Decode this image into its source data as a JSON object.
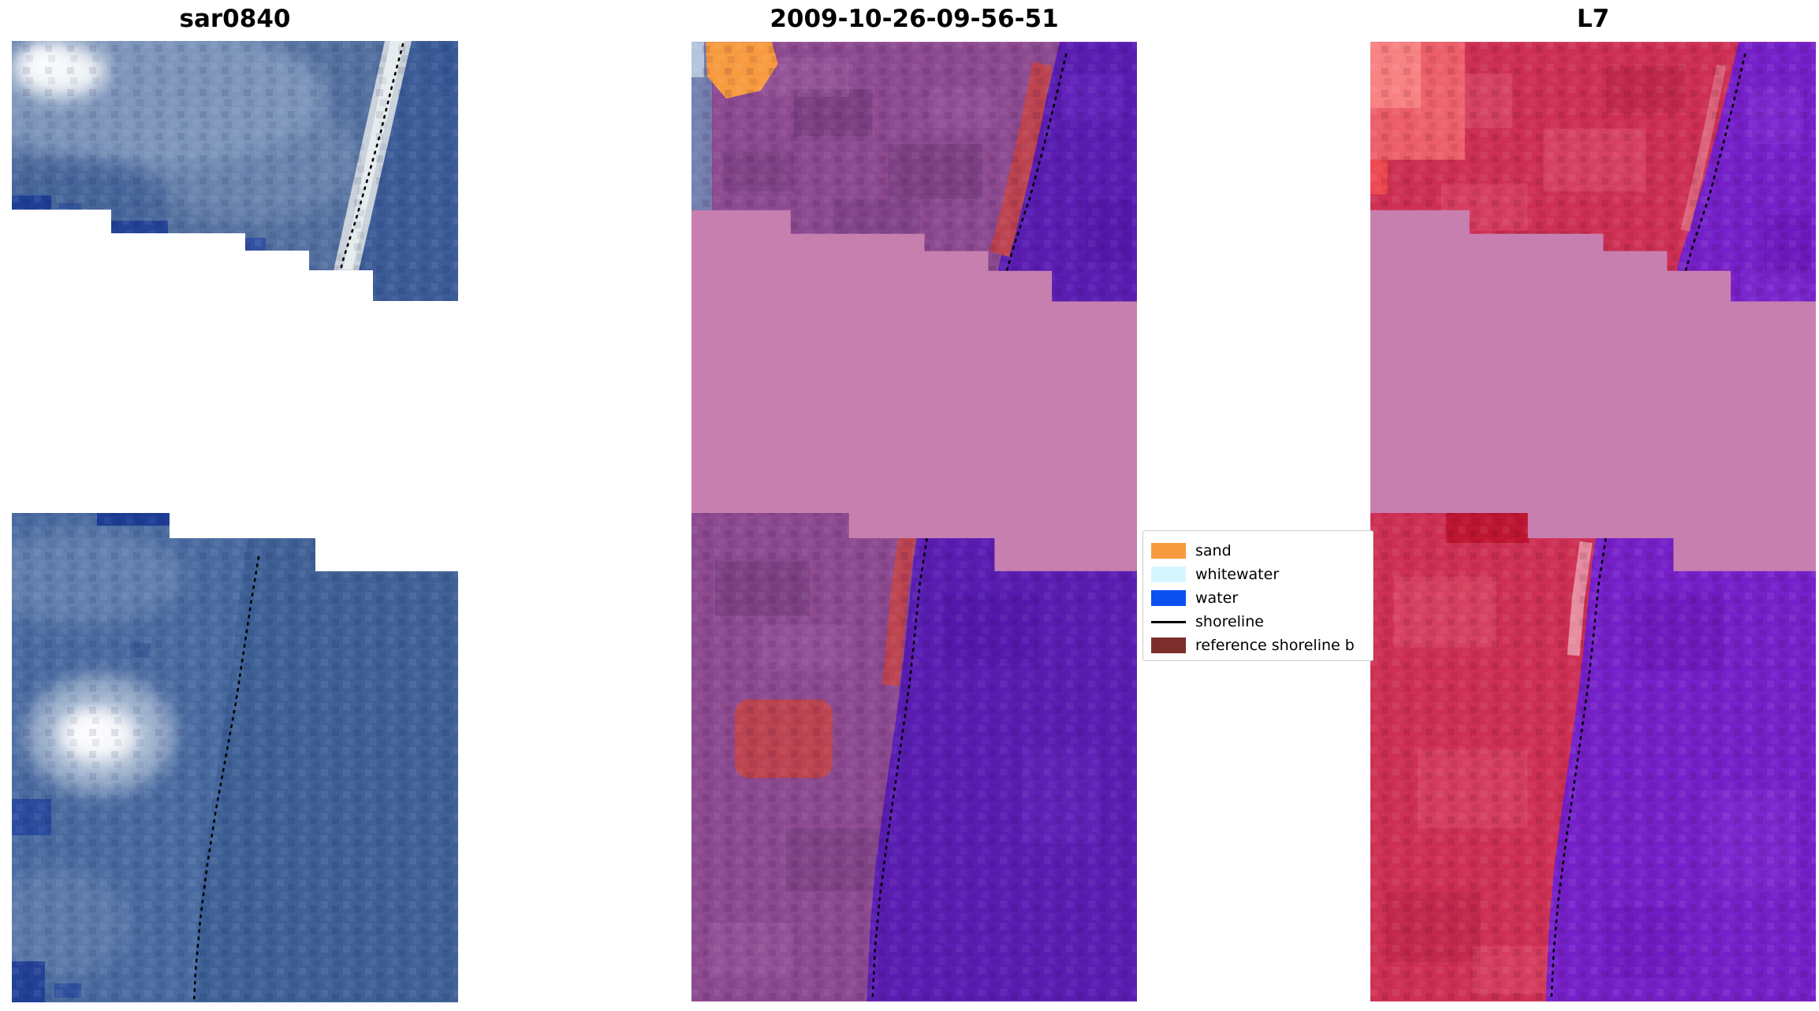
{
  "figure": {
    "background_color": "#FFFFFF",
    "panels": [
      {
        "title": "sar0840",
        "kind": "SAR/optical satellite image crop with white masked band"
      },
      {
        "title": "2009-10-26-09-56-51",
        "kind": "classified satellite image (land purple, water dark violet, masked band pink)"
      },
      {
        "title": "L7",
        "kind": "Landsat 7 false-color classified image (land crimson, water purple, masked band pink)"
      }
    ],
    "legend": {
      "items": [
        {
          "label": "sand",
          "swatch_color": "#F89B40",
          "type": "patch"
        },
        {
          "label": "whitewater",
          "swatch_color": "#D5F6FF",
          "type": "patch"
        },
        {
          "label": "water",
          "swatch_color": "#0C50F0",
          "type": "patch"
        },
        {
          "label": "shoreline",
          "swatch_color": "#000000",
          "type": "line"
        },
        {
          "label": "reference shoreline b",
          "swatch_color": "#7E2D2D",
          "type": "patch"
        }
      ]
    }
  },
  "chart_data": {
    "type": "image-panel-comparison",
    "title": "",
    "panel_titles": [
      "sar0840",
      "2009-10-26-09-56-51",
      "L7"
    ],
    "legend_entries": [
      "sand",
      "whitewater",
      "water",
      "shoreline",
      "reference shoreline b"
    ],
    "class_colors": {
      "sand": "#F89B40",
      "whitewater": "#D5F6FF",
      "water": "#0C50F0",
      "shoreline": "#000000",
      "reference_shoreline_buffer": "#7E2D2D"
    },
    "panel_region_colors": {
      "sar0840": [
        "#54719F",
        "#F2F5F8",
        "#1E3D95",
        "#FFFFFF"
      ],
      "2009-10-26-09-56-51": [
        "#8C4A90",
        "#5A1DB2",
        "#C77FB0",
        "#BC4350",
        "#F89B40"
      ],
      "L7": [
        "#CE3054",
        "#7520C9",
        "#C77FB0",
        "#BE1632"
      ]
    },
    "annotations": [
      "dotted black shoreline traced across all three panels",
      "pink horizontal band marks masked/no-data region",
      "legend box overlaps left edge of L7 panel"
    ]
  }
}
